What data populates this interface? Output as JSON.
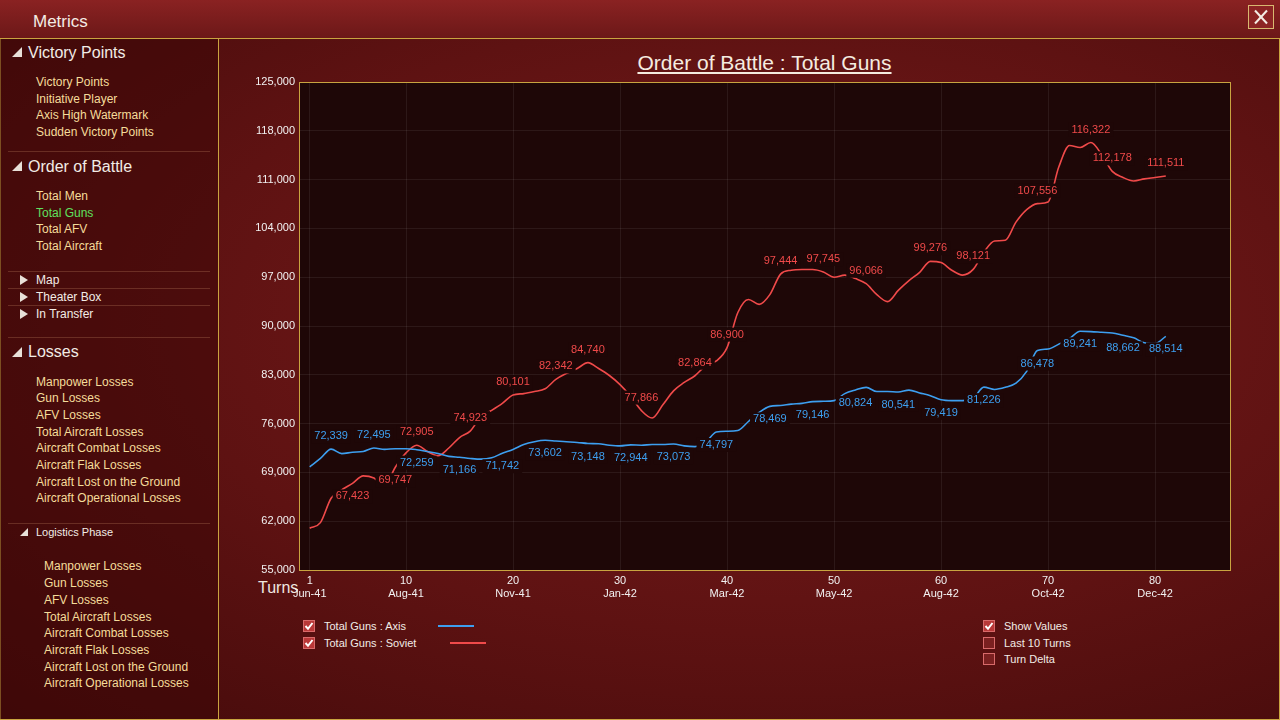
{
  "window": {
    "title": "Metrics"
  },
  "sidebar": [
    {
      "title": "Victory Points",
      "expanded": true,
      "items": [
        "Victory Points",
        "Initiative Player",
        "Axis High Watermark",
        "Sudden Victory Points"
      ]
    },
    {
      "title": "Order of Battle",
      "expanded": true,
      "items": [
        "Total Men",
        "Total Guns",
        "Total AFV",
        "Total Aircraft"
      ],
      "selected": "Total Guns"
    },
    {
      "title": "Map",
      "expanded": false
    },
    {
      "title": "Theater Box",
      "expanded": false
    },
    {
      "title": "In Transfer",
      "expanded": false
    },
    {
      "title": "Losses",
      "expanded": true,
      "items": [
        "Manpower Losses",
        "Gun Losses",
        "AFV Losses",
        "Total Aircraft Losses",
        "Aircraft Combat Losses",
        "Aircraft Flak Losses",
        "Aircraft Lost on the Ground",
        "Aircraft Operational Losses"
      ]
    },
    {
      "title": "Logistics Phase",
      "expanded": true,
      "subgroup": true,
      "items": [
        "Manpower Losses",
        "Gun Losses",
        "AFV Losses",
        "Total Aircraft Losses",
        "Aircraft Combat Losses",
        "Aircraft Flak Losses",
        "Aircraft Lost on the Ground",
        "Aircraft Operational Losses"
      ]
    }
  ],
  "controls": [
    {
      "label": "Show Values",
      "checked": true
    },
    {
      "label": "Last 10 Turns",
      "checked": false
    },
    {
      "label": "Turn Delta",
      "checked": false
    }
  ],
  "chart_data": {
    "type": "line",
    "title": "Order of Battle : Total Guns",
    "x_label": "Turns",
    "x": [
      1,
      2,
      3,
      4,
      5,
      6,
      7,
      8,
      9,
      10,
      11,
      12,
      13,
      14,
      15,
      16,
      17,
      18,
      19,
      20,
      21,
      22,
      23,
      24,
      25,
      26,
      27,
      28,
      29,
      30,
      31,
      32,
      33,
      34,
      35,
      36,
      37,
      38,
      39,
      40,
      41,
      42,
      43,
      44,
      45,
      46,
      47,
      48,
      49,
      50,
      51,
      52,
      53,
      54,
      55,
      56,
      57,
      58,
      59,
      60,
      61,
      62,
      63,
      64,
      65,
      66,
      67,
      68,
      69,
      70,
      71,
      72,
      73,
      74,
      75,
      76,
      77,
      78,
      79,
      80,
      81
    ],
    "series": [
      {
        "name": "Total Guns : Axis",
        "color": "#3d9ff0",
        "values": [
          69800,
          71000,
          72339,
          71700,
          71900,
          72000,
          72495,
          72300,
          72400,
          72400,
          72259,
          72000,
          71700,
          71300,
          71166,
          71000,
          70900,
          71100,
          71742,
          72300,
          73000,
          73400,
          73602,
          73500,
          73400,
          73300,
          73148,
          73100,
          72900,
          72800,
          72944,
          72900,
          73000,
          73000,
          73073,
          72800,
          72700,
          73300,
          74797,
          74900,
          75000,
          76300,
          77600,
          78469,
          78600,
          78800,
          78900,
          79146,
          79200,
          79300,
          80300,
          80824,
          81200,
          80600,
          80600,
          80541,
          80800,
          80400,
          80000,
          79419,
          79300,
          79300,
          79600,
          81226,
          80900,
          81200,
          81800,
          83500,
          86478,
          86700,
          87400,
          88200,
          89241,
          89200,
          89100,
          89000,
          88662,
          88300,
          87600,
          87500,
          88514
        ],
        "value_labels": [
          null,
          null,
          "72,339",
          null,
          null,
          null,
          "72,495",
          null,
          null,
          null,
          "72,259",
          null,
          null,
          null,
          "71,166",
          null,
          null,
          null,
          "71,742",
          null,
          null,
          null,
          "73,602",
          null,
          null,
          null,
          "73,148",
          null,
          null,
          null,
          "72,944",
          null,
          null,
          null,
          "73,073",
          null,
          null,
          null,
          "74,797",
          null,
          null,
          null,
          null,
          "78,469",
          null,
          null,
          null,
          "79,146",
          null,
          null,
          null,
          "80,824",
          null,
          null,
          null,
          "80,541",
          null,
          null,
          null,
          "79,419",
          null,
          null,
          null,
          "81,226",
          null,
          null,
          null,
          null,
          "86,478",
          null,
          null,
          null,
          "89,241",
          null,
          null,
          null,
          "88,662",
          null,
          null,
          null,
          "88,514"
        ]
      },
      {
        "name": "Total Guns : Soviet",
        "color": "#f04a4a",
        "values": [
          61000,
          61800,
          65300,
          66500,
          67423,
          68500,
          68200,
          67100,
          69747,
          71800,
          72905,
          72000,
          71400,
          72500,
          74000,
          74923,
          77000,
          77900,
          78900,
          80101,
          80300,
          80600,
          81000,
          82342,
          83200,
          83900,
          84740,
          83900,
          82900,
          81600,
          79900,
          77866,
          76800,
          78700,
          80700,
          81900,
          82864,
          84300,
          85000,
          86900,
          91900,
          93800,
          93100,
          94500,
          97444,
          98000,
          98100,
          98100,
          97745,
          97000,
          97300,
          96800,
          96066,
          94500,
          93500,
          95100,
          96500,
          97700,
          99276,
          99100,
          98000,
          97300,
          98121,
          100600,
          102200,
          102300,
          104900,
          106700,
          107556,
          107800,
          112800,
          115900,
          115600,
          116322,
          114600,
          112178,
          111300,
          110800,
          111100,
          111300,
          111511
        ],
        "value_labels": [
          null,
          null,
          null,
          null,
          "67,423",
          null,
          null,
          null,
          "69,747",
          null,
          "72,905",
          null,
          null,
          null,
          null,
          "74,923",
          null,
          null,
          null,
          "80,101",
          null,
          null,
          null,
          "82,342",
          null,
          null,
          "84,740",
          null,
          null,
          null,
          null,
          "77,866",
          null,
          null,
          null,
          null,
          "82,864",
          null,
          null,
          "86,900",
          null,
          null,
          null,
          null,
          "97,444",
          null,
          null,
          null,
          "97,745",
          null,
          null,
          null,
          "96,066",
          null,
          null,
          null,
          null,
          null,
          "99,276",
          null,
          null,
          null,
          "98,121",
          null,
          null,
          null,
          null,
          null,
          "107,556",
          null,
          null,
          null,
          null,
          "116,322",
          null,
          "112,178",
          null,
          null,
          null,
          null,
          "111,511"
        ]
      }
    ],
    "xlim": [
      0,
      87
    ],
    "xticks": [
      {
        "value": 1,
        "label": "1\nJun-41"
      },
      {
        "value": 10,
        "label": "10\nAug-41"
      },
      {
        "value": 20,
        "label": "20\nNov-41"
      },
      {
        "value": 30,
        "label": "30\nJan-42"
      },
      {
        "value": 40,
        "label": "40\nMar-42"
      },
      {
        "value": 50,
        "label": "50\nMay-42"
      },
      {
        "value": 60,
        "label": "60\nAug-42"
      },
      {
        "value": 70,
        "label": "70\nOct-42"
      },
      {
        "value": 80,
        "label": "80\nDec-42"
      }
    ],
    "ylim": [
      55000,
      125000
    ],
    "yticks": [
      {
        "value": 55000,
        "label": "55,000"
      },
      {
        "value": 62000,
        "label": "62,000"
      },
      {
        "value": 69000,
        "label": "69,000"
      },
      {
        "value": 76000,
        "label": "76,000"
      },
      {
        "value": 83000,
        "label": "83,000"
      },
      {
        "value": 90000,
        "label": "90,000"
      },
      {
        "value": 97000,
        "label": "97,000"
      },
      {
        "value": 104000,
        "label": "104,000"
      },
      {
        "value": 111000,
        "label": "111,000"
      },
      {
        "value": 118000,
        "label": "118,000"
      },
      {
        "value": 125000,
        "label": "125,000"
      }
    ],
    "grid": true,
    "legend": "lower left",
    "data_labels": true
  }
}
